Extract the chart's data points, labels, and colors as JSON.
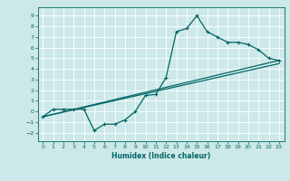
{
  "xlabel": "Humidex (Indice chaleur)",
  "bg_color": "#cde8e8",
  "grid_color": "#ffffff",
  "line_color": "#006666",
  "xlim": [
    -0.5,
    23.5
  ],
  "ylim": [
    -2.8,
    9.8
  ],
  "xticks": [
    0,
    1,
    2,
    3,
    4,
    5,
    6,
    7,
    8,
    9,
    10,
    11,
    12,
    13,
    14,
    15,
    16,
    17,
    18,
    19,
    20,
    21,
    22,
    23
  ],
  "yticks": [
    -2,
    -1,
    0,
    1,
    2,
    3,
    4,
    5,
    6,
    7,
    8,
    9
  ],
  "line1_x": [
    0,
    1,
    2,
    3,
    4,
    5,
    6,
    7,
    8,
    9,
    10,
    11,
    12,
    13,
    14,
    15,
    16,
    17,
    18,
    19,
    20,
    21,
    22,
    23
  ],
  "line1_y": [
    -0.5,
    0.2,
    0.2,
    0.2,
    0.2,
    -1.8,
    -1.2,
    -1.2,
    -0.8,
    0.0,
    1.5,
    1.6,
    3.2,
    7.5,
    7.8,
    9.0,
    7.5,
    7.0,
    6.5,
    6.5,
    6.3,
    5.8,
    5.0,
    4.8
  ],
  "line2_x": [
    0,
    23
  ],
  "line2_y": [
    -0.5,
    4.8
  ],
  "line3_x": [
    0,
    23
  ],
  "line3_y": [
    -0.5,
    4.5
  ]
}
